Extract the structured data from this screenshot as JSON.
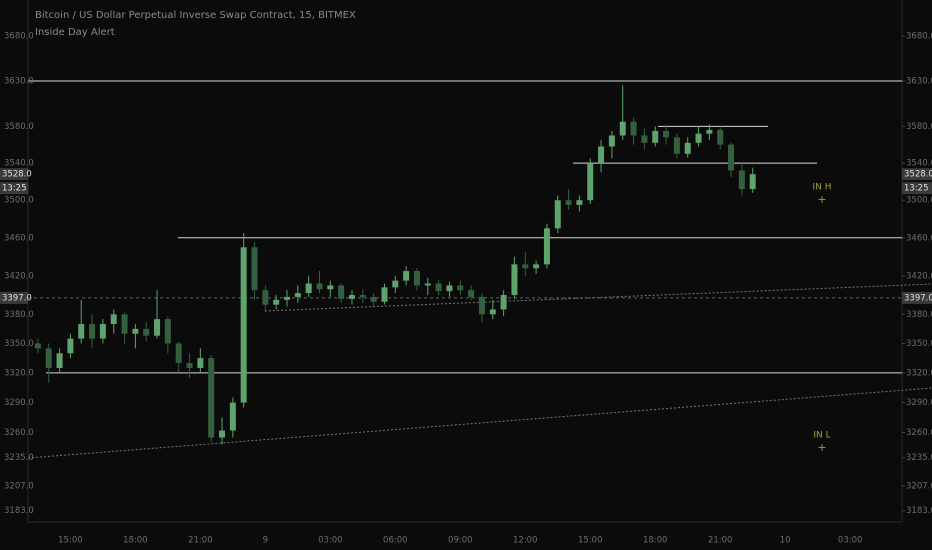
{
  "chart_data": {
    "type": "candlestick",
    "title": "Bitcoin / US Dollar Perpetual Inverse Swap Contract, 15, BITMEX",
    "subtitle": "Inside Day Alert",
    "log_scale": true,
    "up_color": "#5fa36d",
    "down_color": "#35603f",
    "level_color": "#d8d8d8",
    "categories": [
      null,
      null,
      null,
      "15:00",
      null,
      null,
      null,
      null,
      null,
      "18:00",
      null,
      null,
      null,
      null,
      null,
      "21:00",
      null,
      null,
      null,
      null,
      null,
      "9",
      null,
      null,
      null,
      null,
      null,
      "03:00",
      null,
      null,
      null,
      null,
      null,
      "06:00",
      null,
      null,
      null,
      null,
      null,
      "09:00",
      null,
      null,
      null,
      null,
      null,
      "12:00",
      null,
      null,
      null,
      null,
      null,
      "15:00",
      null,
      null,
      null,
      null,
      null,
      "18:00",
      null,
      null,
      null,
      null,
      null,
      "21:00",
      null,
      null,
      null,
      null,
      null,
      "10",
      null,
      null,
      null,
      null,
      null,
      "03:00",
      null,
      null,
      null,
      null
    ],
    "open": [
      3350,
      3345,
      3325,
      3340,
      3355,
      3370,
      3355,
      3370,
      3380,
      3360,
      3365,
      3358,
      3375,
      3350,
      3330,
      3325,
      3335,
      3255,
      3262,
      3290,
      3450,
      3405,
      3390,
      3395,
      3398,
      3402,
      3412,
      3406,
      3410,
      3396,
      3400,
      3398,
      3393,
      3408,
      3415,
      3425,
      3410,
      3412,
      3404,
      3410,
      3405,
      3398,
      3380,
      3385,
      3400,
      3432,
      3428,
      3432,
      3470,
      3500,
      3495,
      3500,
      3540,
      3558,
      3570,
      3585,
      3570,
      3562,
      3575,
      3568,
      3550,
      3562,
      3572,
      3576,
      3560,
      3532,
      3512,
      null,
      null,
      null,
      null,
      null,
      null,
      null,
      null,
      null,
      null,
      null,
      null,
      null
    ],
    "high": [
      3355,
      3350,
      3345,
      3360,
      3395,
      3380,
      3375,
      3385,
      3382,
      3370,
      3372,
      3405,
      3378,
      3352,
      3340,
      3345,
      3338,
      3275,
      3295,
      3465,
      3455,
      3410,
      3400,
      3405,
      3410,
      3420,
      3425,
      3415,
      3412,
      3405,
      3406,
      3402,
      3412,
      3420,
      3430,
      3428,
      3418,
      3416,
      3414,
      3415,
      3410,
      3402,
      3395,
      3405,
      3440,
      3445,
      3436,
      3475,
      3505,
      3512,
      3505,
      3545,
      3565,
      3575,
      3625,
      3590,
      3578,
      3580,
      3582,
      3572,
      3568,
      3580,
      3582,
      3580,
      3562,
      3540,
      3535,
      null,
      null,
      null,
      null,
      null,
      null,
      null,
      null,
      null,
      null,
      null,
      null,
      null
    ],
    "low": [
      3340,
      3310,
      3320,
      3335,
      3350,
      3345,
      3350,
      3360,
      3350,
      3345,
      3352,
      3355,
      3340,
      3320,
      3315,
      3320,
      3250,
      3248,
      3255,
      3285,
      3395,
      3382,
      3385,
      3388,
      3392,
      3398,
      3402,
      3398,
      3392,
      3390,
      3392,
      3388,
      3390,
      3402,
      3410,
      3405,
      3400,
      3400,
      3398,
      3400,
      3395,
      3372,
      3375,
      3378,
      3396,
      3420,
      3422,
      3428,
      3465,
      3490,
      3488,
      3496,
      3530,
      3545,
      3565,
      3560,
      3555,
      3558,
      3560,
      3545,
      3546,
      3558,
      3565,
      3555,
      3525,
      3505,
      3508,
      null,
      null,
      null,
      null,
      null,
      null,
      null,
      null,
      null,
      null,
      null,
      null,
      null
    ],
    "close": [
      3345,
      3325,
      3340,
      3355,
      3370,
      3355,
      3370,
      3380,
      3360,
      3365,
      3358,
      3375,
      3350,
      3330,
      3325,
      3335,
      3255,
      3262,
      3290,
      3450,
      3405,
      3390,
      3395,
      3398,
      3402,
      3412,
      3406,
      3410,
      3396,
      3400,
      3398,
      3393,
      3408,
      3415,
      3425,
      3410,
      3412,
      3404,
      3410,
      3405,
      3398,
      3380,
      3385,
      3400,
      3432,
      3428,
      3432,
      3470,
      3500,
      3495,
      3500,
      3540,
      3558,
      3570,
      3585,
      3570,
      3562,
      3575,
      3568,
      3550,
      3562,
      3572,
      3576,
      3560,
      3532,
      3512,
      3528,
      null,
      null,
      null,
      null,
      null,
      null,
      null,
      null,
      null,
      null,
      null,
      null,
      null
    ],
    "ylim": [
      3172,
      3721
    ],
    "yticks": [
      {
        "value": 3183,
        "label": "3183.0"
      },
      {
        "value": 3207,
        "label": "3207.0"
      },
      {
        "value": 3235,
        "label": "3235.0"
      },
      {
        "value": 3260,
        "label": "3260.0"
      },
      {
        "value": 3290,
        "label": "3290.0"
      },
      {
        "value": 3320,
        "label": "3320.0"
      },
      {
        "value": 3350,
        "label": "3350.0"
      },
      {
        "value": 3380,
        "label": "3380.0"
      },
      {
        "value": 3420,
        "label": "3420.0"
      },
      {
        "value": 3460,
        "label": "3460.0"
      },
      {
        "value": 3500,
        "label": "3500.0"
      },
      {
        "value": 3540,
        "label": "3540.0"
      },
      {
        "value": 3580,
        "label": "3580.0"
      },
      {
        "value": 3630,
        "label": "3630.0"
      },
      {
        "value": 3680,
        "label": "3680.0"
      }
    ],
    "levels": [
      3630,
      3460,
      3320,
      3580,
      3540
    ],
    "last_price": {
      "value": 3528,
      "label": "3528.0"
    },
    "countdown": "13:25",
    "marker_price": {
      "value": 3397,
      "label": "3397.0"
    },
    "annotations": [
      {
        "text": "IN H",
        "symbol": "+"
      },
      {
        "text": "IN L",
        "symbol": "+"
      }
    ]
  }
}
